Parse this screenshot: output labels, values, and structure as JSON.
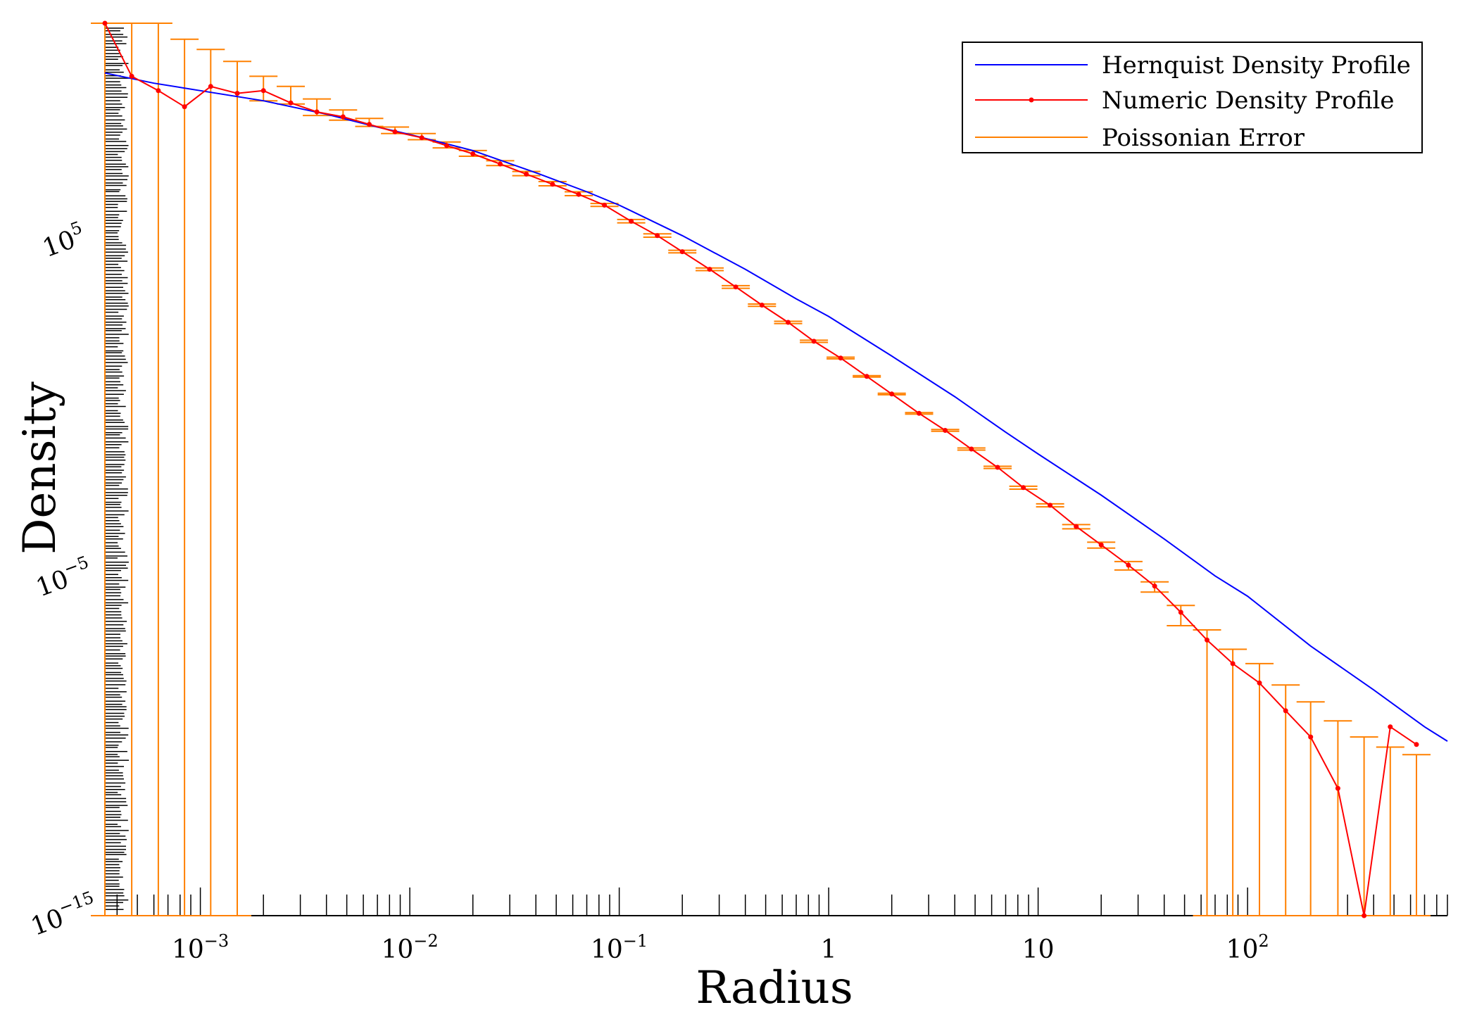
{
  "chart_data": {
    "type": "line",
    "title": "",
    "xlabel": "Radius",
    "ylabel": "Density",
    "x_scale": "log",
    "y_scale": "log",
    "xlim": [
      0.00035,
      900
    ],
    "ylim": [
      1e-15,
      300000000000.0
    ],
    "x_ticks": [
      {
        "value": 0.001,
        "base": "10",
        "exp": "−3"
      },
      {
        "value": 0.01,
        "base": "10",
        "exp": "−2"
      },
      {
        "value": 0.1,
        "base": "10",
        "exp": "−1"
      },
      {
        "value": 1,
        "base": "1",
        "exp": ""
      },
      {
        "value": 10,
        "base": "10",
        "exp": ""
      },
      {
        "value": 100,
        "base": "10",
        "exp": "2"
      }
    ],
    "y_ticks": [
      {
        "value": 100000.0,
        "base": "10",
        "exp": "5"
      },
      {
        "value": 1e-05,
        "base": "10",
        "exp": "−5"
      },
      {
        "value": 1e-15,
        "base": "10",
        "exp": "−15"
      }
    ],
    "legend": {
      "position": "top-right",
      "entries": [
        "Hernquist Density Profile",
        "Numeric Density Profile",
        "Poissonian Error"
      ]
    },
    "colors": {
      "hernquist": "#0000ff",
      "numeric": "#ff0000",
      "error": "#ff8000",
      "axis": "#000000"
    },
    "series": [
      {
        "name": "Hernquist Density Profile",
        "x": [
          0.00035,
          0.0006,
          0.001,
          0.002,
          0.004,
          0.007,
          0.01,
          0.02,
          0.04,
          0.07,
          0.1,
          0.2,
          0.4,
          0.7,
          1,
          2,
          4,
          7,
          10,
          20,
          40,
          70,
          100,
          200,
          400,
          700,
          900
        ],
        "y": [
          10000000000.0,
          5000000000.0,
          3000000000.0,
          1500000000.0,
          600000000.0,
          250000000.0,
          150000000.0,
          50000000.0,
          11000000.0,
          3000000.0,
          1200000.0,
          150000.0,
          15000.0,
          2000,
          600,
          40,
          2.5,
          0.22,
          0.05,
          0.003,
          0.00015,
          1.2e-05,
          3e-06,
          1e-07,
          5e-09,
          4e-10,
          1.5e-10
        ]
      },
      {
        "name": "Numeric Density Profile",
        "x": [
          0.00035,
          0.00047,
          0.00063,
          0.00084,
          0.00112,
          0.0015,
          0.002,
          0.0027,
          0.0036,
          0.0048,
          0.0064,
          0.0085,
          0.0114,
          0.015,
          0.02,
          0.027,
          0.036,
          0.048,
          0.064,
          0.085,
          0.114,
          0.152,
          0.2,
          0.27,
          0.36,
          0.48,
          0.64,
          0.85,
          1.14,
          1.52,
          2.0,
          2.7,
          3.6,
          4.8,
          6.4,
          8.5,
          11.4,
          15.2,
          20,
          27,
          36,
          48,
          64,
          85,
          114,
          152,
          200,
          270,
          360,
          480,
          640
        ],
        "y": [
          300000000000.0,
          8000000000.0,
          3000000000.0,
          1000000000.0,
          4000000000.0,
          2500000000.0,
          3000000000.0,
          1300000000.0,
          700000000.0,
          500000000.0,
          300000000.0,
          180000000.0,
          120000000.0,
          70000000.0,
          40000000.0,
          20000000.0,
          10000000.0,
          5000000.0,
          2500000.0,
          1200000.0,
          400000.0,
          150000.0,
          50000.0,
          15000.0,
          4500,
          1300,
          400,
          110,
          35,
          10,
          3,
          0.8,
          0.25,
          0.07,
          0.02,
          0.005,
          0.0015,
          0.00035,
          0.0001,
          2.5e-05,
          6e-06,
          1e-06,
          1.5e-07,
          3e-08,
          8e-09,
          1.2e-09,
          2e-10,
          6e-12,
          1e-15,
          4e-10,
          1.2e-10
        ]
      }
    ],
    "error_bars": {
      "name": "Poissonian Error",
      "x": [
        0.00035,
        0.00047,
        0.00063,
        0.00084,
        0.00112,
        0.0015,
        0.002,
        0.0027,
        0.0036,
        0.0048,
        0.0064,
        0.0085,
        0.0114,
        0.015,
        0.02,
        0.027,
        0.036,
        0.048,
        0.064,
        0.085,
        0.114,
        0.152,
        0.2,
        0.27,
        0.36,
        0.48,
        0.64,
        0.85,
        1.14,
        1.52,
        2.0,
        2.7,
        3.6,
        4.8,
        6.4,
        8.5,
        11.4,
        15.2,
        20,
        27,
        36,
        48,
        64,
        85,
        114,
        152,
        200,
        270,
        360,
        480,
        640
      ],
      "high": [
        300000000000.0,
        300000000000.0,
        300000000000.0,
        100000000000.0,
        50000000000.0,
        22000000000.0,
        8000000000.0,
        4000000000.0,
        1700000000.0,
        800000000.0,
        450000000.0,
        250000000.0,
        160000000.0,
        90000000.0,
        50000000.0,
        25000000.0,
        12000000.0,
        6000000.0,
        3000000.0,
        1350000.0,
        450000.0,
        170000.0,
        55000.0,
        16500.0,
        4900,
        1400,
        430,
        118,
        37,
        10.5,
        3.15,
        0.84,
        0.265,
        0.075,
        0.0215,
        0.0055,
        0.00165,
        0.0004,
        0.00012,
        3.2e-05,
        8e-06,
        1.6e-06,
        3e-07,
        8e-08,
        3e-08,
        7e-09,
        2.2e-09,
        6e-10,
        2e-10,
        1e-10,
        6e-11
      ],
      "low": [
        1e-15,
        1e-15,
        1e-15,
        1e-15,
        1e-15,
        1e-15,
        1500000000.0,
        1200000000.0,
        550000000.0,
        400000000.0,
        260000000.0,
        160000000.0,
        105000000.0,
        60000000.0,
        34000000.0,
        18000000.0,
        9000000.0,
        4500000.0,
        2300000.0,
        1100000.0,
        360000.0,
        135000.0,
        46000.0,
        13700.0,
        4100,
        1200,
        370,
        102,
        33,
        9.5,
        2.85,
        0.76,
        0.235,
        0.065,
        0.0185,
        0.0045,
        0.00135,
        0.0003,
        8e-05,
        1.8e-05,
        4e-06,
        4e-07,
        1e-15,
        1e-15,
        1e-15,
        1e-15,
        1e-15,
        1e-15,
        1e-15,
        1e-15,
        1e-15
      ]
    },
    "rug_y_count": 280,
    "rug_x_count": 220
  }
}
